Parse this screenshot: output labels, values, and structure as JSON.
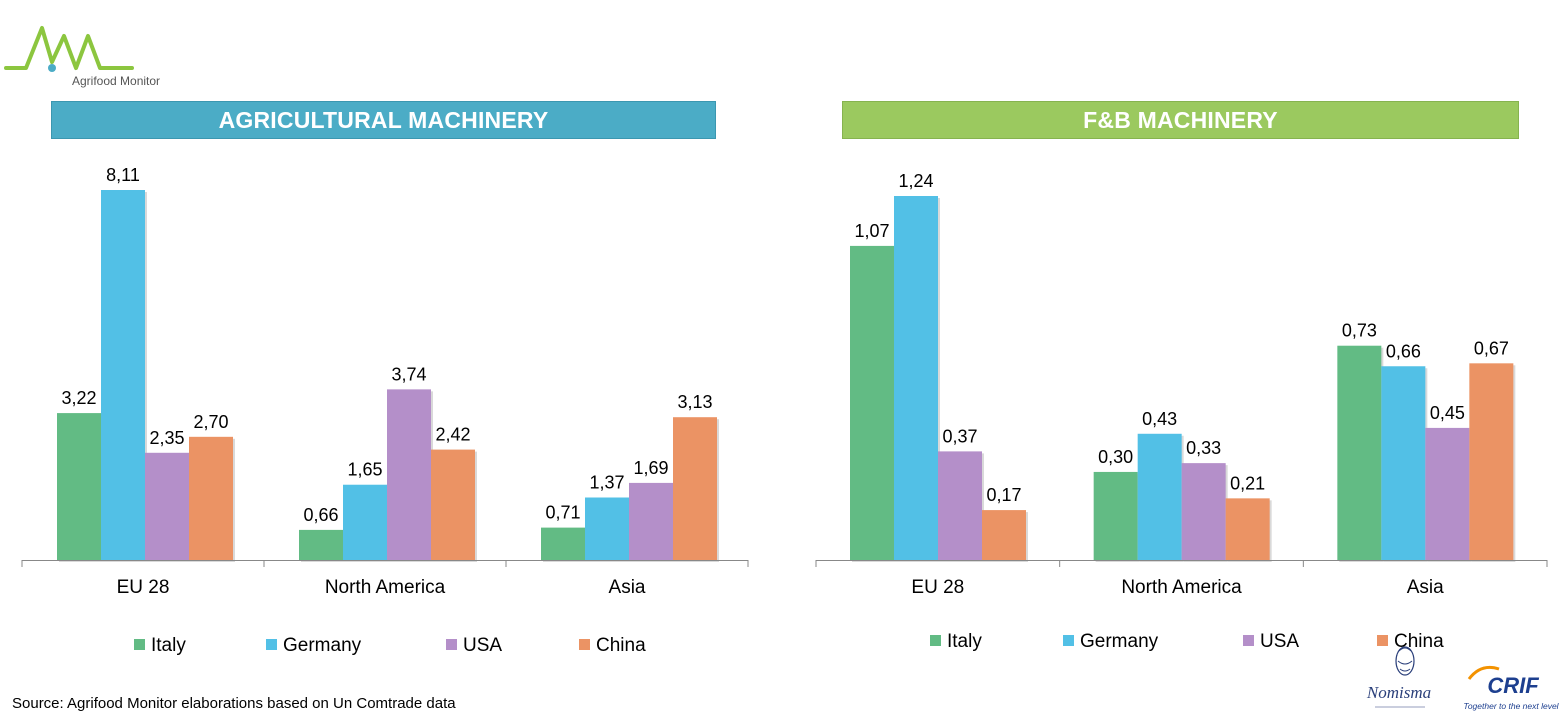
{
  "header": {
    "logo_text": "Agrifood Monitor"
  },
  "colors": {
    "Italy": "#62bb84",
    "Germany": "#52c0e6",
    "USA": "#b48fc9",
    "China": "#eb9364",
    "banner_left": "#4bacc6",
    "banner_right": "#9bc95f"
  },
  "chart_data": [
    {
      "type": "bar",
      "title": "AGRICULTURAL MACHINERY",
      "categories": [
        "EU 28",
        "North America",
        "Asia"
      ],
      "series": [
        {
          "name": "Italy",
          "values": [
            3.22,
            0.66,
            0.71
          ],
          "labels": [
            "3,22",
            "0,66",
            "0,71"
          ]
        },
        {
          "name": "Germany",
          "values": [
            8.11,
            1.65,
            1.37
          ],
          "labels": [
            "8,11",
            "1,65",
            "1,37"
          ]
        },
        {
          "name": "USA",
          "values": [
            2.35,
            3.74,
            1.69
          ],
          "labels": [
            "2,35",
            "3,74",
            "1,69"
          ]
        },
        {
          "name": "China",
          "values": [
            2.7,
            2.42,
            3.13
          ],
          "labels": [
            "2,70",
            "2,42",
            "3,13"
          ]
        }
      ],
      "legend_position": "bottom",
      "grid": false
    },
    {
      "type": "bar",
      "title": "F&B MACHINERY",
      "categories": [
        "EU 28",
        "North America",
        "Asia"
      ],
      "series": [
        {
          "name": "Italy",
          "values": [
            1.07,
            0.3,
            0.73
          ],
          "labels": [
            "1,07",
            "0,30",
            "0,73"
          ]
        },
        {
          "name": "Germany",
          "values": [
            1.24,
            0.43,
            0.66
          ],
          "labels": [
            "1,24",
            "0,43",
            "0,66"
          ]
        },
        {
          "name": "USA",
          "values": [
            0.37,
            0.33,
            0.45
          ],
          "labels": [
            "0,37",
            "0,33",
            "0,45"
          ]
        },
        {
          "name": "China",
          "values": [
            0.17,
            0.21,
            0.67
          ],
          "labels": [
            "0,17",
            "0,21",
            "0,67"
          ]
        }
      ],
      "legend_position": "bottom",
      "grid": false
    }
  ],
  "source": "Source:  Agrifood Monitor elaborations based on Un Comtrade data",
  "footer": {
    "nomisma": "Nomisma",
    "crif": "CRIF",
    "crif_tagline": "Together to the next level"
  }
}
